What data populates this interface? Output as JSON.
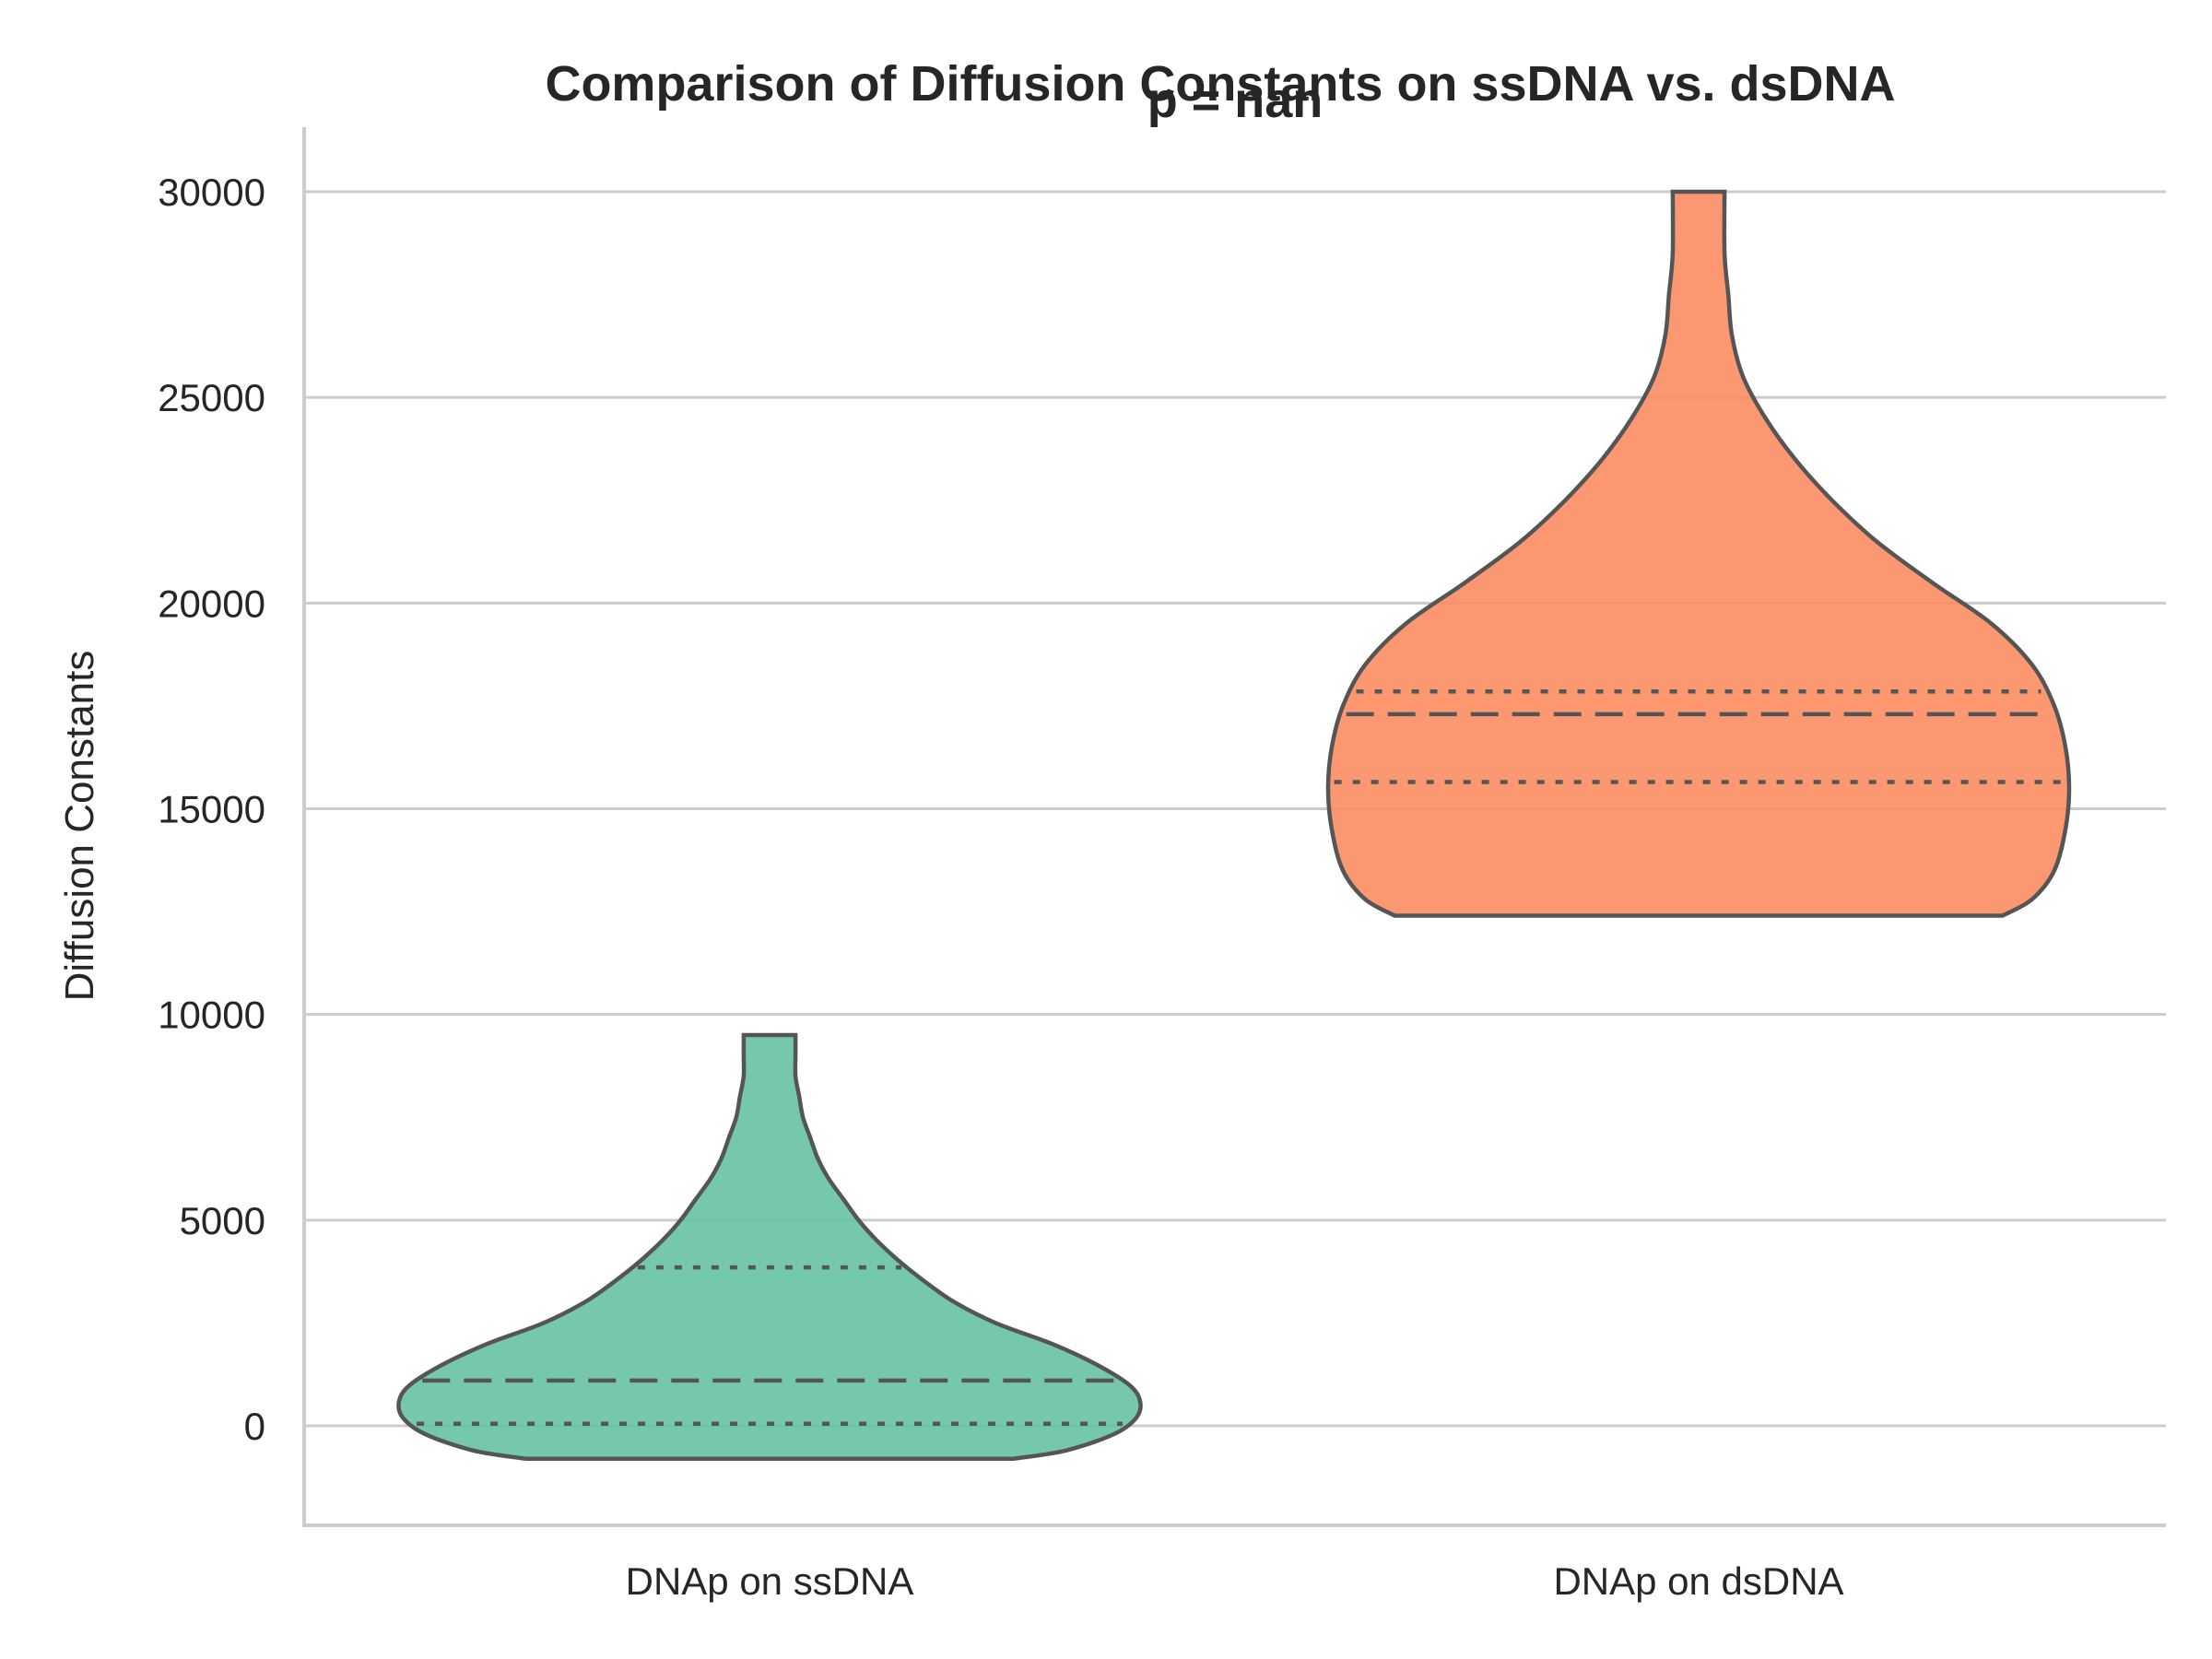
{
  "chart_data": {
    "type": "violin",
    "title": "Comparison of Diffusion Constants on ssDNA vs. dsDNA",
    "subtitle": "p = nan",
    "xlabel": "",
    "ylabel": "Diffusion Constants",
    "ylim": [
      -2300,
      31500
    ],
    "yticks": [
      0,
      5000,
      10000,
      15000,
      20000,
      25000,
      30000
    ],
    "grid": true,
    "categories": [
      "DNAp on ssDNA",
      "DNAp on dsDNA"
    ],
    "series": [
      {
        "category": "DNAp on ssDNA",
        "color": "#66c2a5",
        "min": -800,
        "max": 9500,
        "q1": 50,
        "median": 1100,
        "q3": 3850,
        "density_profile": [
          [
            -800,
            0.66
          ],
          [
            -600,
            0.8
          ],
          [
            -200,
            0.93
          ],
          [
            200,
            0.99
          ],
          [
            600,
            1.0
          ],
          [
            1000,
            0.97
          ],
          [
            1500,
            0.88
          ],
          [
            2000,
            0.76
          ],
          [
            2500,
            0.61
          ],
          [
            3000,
            0.5
          ],
          [
            3500,
            0.42
          ],
          [
            4000,
            0.35
          ],
          [
            4500,
            0.29
          ],
          [
            5000,
            0.24
          ],
          [
            5500,
            0.2
          ],
          [
            6000,
            0.16
          ],
          [
            6500,
            0.13
          ],
          [
            7000,
            0.11
          ],
          [
            7500,
            0.09
          ],
          [
            8000,
            0.08
          ],
          [
            8500,
            0.07
          ],
          [
            9000,
            0.07
          ],
          [
            9500,
            0.07
          ]
        ]
      },
      {
        "category": "DNAp on dsDNA",
        "color": "#fc8d62",
        "min": 12400,
        "max": 30000,
        "q1": 15650,
        "median": 17300,
        "q3": 17850,
        "density_profile": [
          [
            12400,
            0.82
          ],
          [
            12800,
            0.9
          ],
          [
            13500,
            0.96
          ],
          [
            14500,
            0.99
          ],
          [
            15500,
            1.0
          ],
          [
            16500,
            0.99
          ],
          [
            17500,
            0.96
          ],
          [
            18500,
            0.9
          ],
          [
            19500,
            0.79
          ],
          [
            20500,
            0.63
          ],
          [
            21500,
            0.48
          ],
          [
            22500,
            0.36
          ],
          [
            23500,
            0.26
          ],
          [
            24500,
            0.18
          ],
          [
            25500,
            0.12
          ],
          [
            26500,
            0.09
          ],
          [
            27500,
            0.08
          ],
          [
            28500,
            0.07
          ],
          [
            30000,
            0.07
          ]
        ]
      }
    ]
  }
}
